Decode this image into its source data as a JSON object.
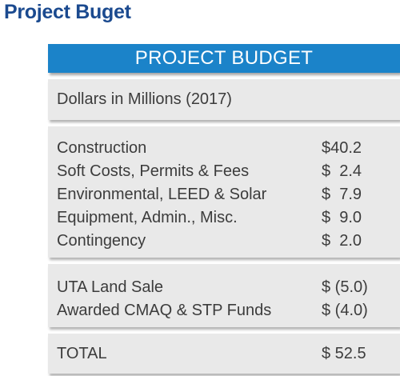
{
  "page_title": "Project Buget",
  "table": {
    "header": "PROJECT BUDGET",
    "units_note": "Dollars in Millions (2017)",
    "cost_items": [
      {
        "label": "Construction",
        "value": "$40.2"
      },
      {
        "label": "Soft Costs, Permits & Fees",
        "value": "$  2.4"
      },
      {
        "label": "Environmental, LEED & Solar",
        "value": "$  7.9"
      },
      {
        "label": "Equipment, Admin., Misc.",
        "value": "$  9.0"
      },
      {
        "label": "Contingency",
        "value": "$  2.0"
      }
    ],
    "offset_items": [
      {
        "label": "UTA Land Sale",
        "value": "$ (5.0)"
      },
      {
        "label": "Awarded CMAQ & STP Funds",
        "value": "$ (4.0)"
      }
    ],
    "total": {
      "label": "TOTAL",
      "value": "$ 52.5"
    }
  },
  "colors": {
    "heading": "#1b4a8f",
    "header_bar": "#1b83c9",
    "panel_background": "#e9e9e9",
    "text": "#3c3c3c"
  }
}
